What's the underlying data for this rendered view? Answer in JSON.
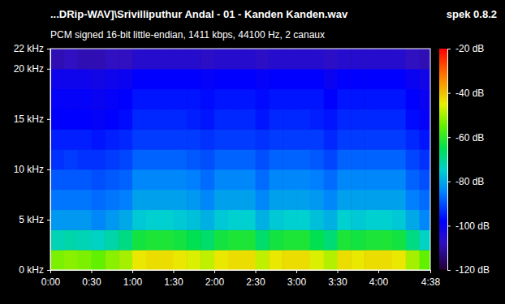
{
  "chart_data": {
    "type": "heatmap",
    "title": "...DRip-WAV]\\Srivilliputhur Andal - 01 - Kanden Kanden.wav",
    "annotation": "spek 0.8.2",
    "subtitle": "PCM signed 16-bit little-endian, 1411 kbps, 44100 Hz, 2 canaux",
    "x_bins": [
      0,
      10,
      20,
      30,
      40,
      50,
      60,
      70,
      80,
      90,
      100,
      110,
      120,
      130,
      140,
      150,
      160,
      170,
      180,
      190,
      200,
      210,
      220,
      230,
      240,
      250,
      260,
      270,
      278
    ],
    "y_bins": [
      0,
      2,
      4,
      6,
      8,
      10,
      12,
      14,
      16,
      18,
      20,
      22
    ],
    "values": [
      [
        -53,
        -52,
        -53,
        -55,
        -52,
        -50,
        -44,
        -43,
        -43,
        -44,
        -46,
        -48,
        -44,
        -43,
        -43,
        -48,
        -44,
        -43,
        -43,
        -46,
        -49,
        -43,
        -44,
        -43,
        -43,
        -44,
        -50,
        -55
      ],
      [
        -73,
        -72,
        -73,
        -74,
        -72,
        -69,
        -63,
        -62,
        -62,
        -63,
        -65,
        -67,
        -63,
        -62,
        -62,
        -67,
        -63,
        -62,
        -62,
        -65,
        -68,
        -62,
        -63,
        -62,
        -62,
        -63,
        -69,
        -74
      ],
      [
        -82,
        -82,
        -82,
        -84,
        -82,
        -80,
        -76,
        -75,
        -75,
        -76,
        -77,
        -79,
        -76,
        -75,
        -75,
        -79,
        -76,
        -75,
        -75,
        -77,
        -79,
        -75,
        -76,
        -75,
        -75,
        -76,
        -80,
        -84
      ],
      [
        -86,
        -86,
        -86,
        -87,
        -86,
        -85,
        -81,
        -81,
        -81,
        -81,
        -82,
        -84,
        -81,
        -81,
        -81,
        -84,
        -81,
        -81,
        -81,
        -82,
        -84,
        -81,
        -81,
        -81,
        -81,
        -81,
        -85,
        -87
      ],
      [
        -89,
        -89,
        -89,
        -90,
        -89,
        -88,
        -84,
        -84,
        -84,
        -84,
        -85,
        -87,
        -84,
        -84,
        -84,
        -87,
        -84,
        -84,
        -84,
        -85,
        -87,
        -84,
        -84,
        -84,
        -84,
        -84,
        -88,
        -90
      ],
      [
        -93,
        -92,
        -93,
        -93,
        -92,
        -91,
        -88,
        -88,
        -88,
        -88,
        -89,
        -90,
        -88,
        -88,
        -88,
        -90,
        -88,
        -88,
        -88,
        -89,
        -91,
        -88,
        -88,
        -88,
        -88,
        -88,
        -91,
        -93
      ],
      [
        -95,
        -95,
        -95,
        -96,
        -95,
        -94,
        -92,
        -92,
        -92,
        -92,
        -92,
        -93,
        -92,
        -92,
        -92,
        -93,
        -92,
        -92,
        -92,
        -92,
        -94,
        -92,
        -92,
        -92,
        -92,
        -92,
        -94,
        -96
      ],
      [
        -98,
        -98,
        -98,
        -99,
        -98,
        -97,
        -94,
        -94,
        -94,
        -94,
        -95,
        -96,
        -94,
        -94,
        -94,
        -96,
        -94,
        -94,
        -94,
        -95,
        -96,
        -94,
        -94,
        -94,
        -94,
        -94,
        -97,
        -99
      ],
      [
        -99,
        -99,
        -99,
        -100,
        -99,
        -98,
        -96,
        -96,
        -96,
        -96,
        -96,
        -97,
        -96,
        -96,
        -96,
        -97,
        -96,
        -96,
        -96,
        -96,
        -98,
        -96,
        -96,
        -96,
        -96,
        -96,
        -98,
        -100
      ],
      [
        -101,
        -101,
        -101,
        -102,
        -101,
        -100,
        -98,
        -98,
        -98,
        -98,
        -98,
        -99,
        -98,
        -98,
        -98,
        -99,
        -98,
        -98,
        -98,
        -98,
        -100,
        -98,
        -98,
        -98,
        -98,
        -98,
        -100,
        -102
      ],
      [
        -109,
        -108,
        -109,
        -109,
        -108,
        -108,
        -106,
        -106,
        -106,
        -106,
        -106,
        -107,
        -106,
        -106,
        -106,
        -107,
        -106,
        -106,
        -106,
        -106,
        -107,
        -106,
        -106,
        -106,
        -106,
        -106,
        -108,
        -109
      ]
    ],
    "xlim": [
      0,
      278
    ],
    "ylim": [
      0,
      22
    ],
    "xticks": [
      {
        "value": 0,
        "label": "0:00"
      },
      {
        "value": 30,
        "label": "0:30"
      },
      {
        "value": 60,
        "label": "1:00"
      },
      {
        "value": 90,
        "label": "1:30"
      },
      {
        "value": 120,
        "label": "2:00"
      },
      {
        "value": 150,
        "label": "2:30"
      },
      {
        "value": 180,
        "label": "3:00"
      },
      {
        "value": 210,
        "label": "3:30"
      },
      {
        "value": 240,
        "label": "4:00"
      },
      {
        "value": 278,
        "label": "4:38"
      }
    ],
    "yticks": [
      {
        "value": 0,
        "label": "0 kHz"
      },
      {
        "value": 5,
        "label": "5 kHz"
      },
      {
        "value": 10,
        "label": "10 kHz"
      },
      {
        "value": 15,
        "label": "15 kHz"
      },
      {
        "value": 20,
        "label": "20 kHz"
      },
      {
        "value": 22,
        "label": "22 kHz"
      }
    ],
    "colorbar": {
      "range": [
        -120,
        -20
      ],
      "ticks": [
        {
          "value": -20,
          "label": "-20 dB"
        },
        {
          "value": -40,
          "label": "-40 dB"
        },
        {
          "value": -60,
          "label": "-60 dB"
        },
        {
          "value": -80,
          "label": "-80 dB"
        },
        {
          "value": -100,
          "label": "-100 dB"
        },
        {
          "value": -120,
          "label": "-120 dB"
        }
      ]
    }
  }
}
